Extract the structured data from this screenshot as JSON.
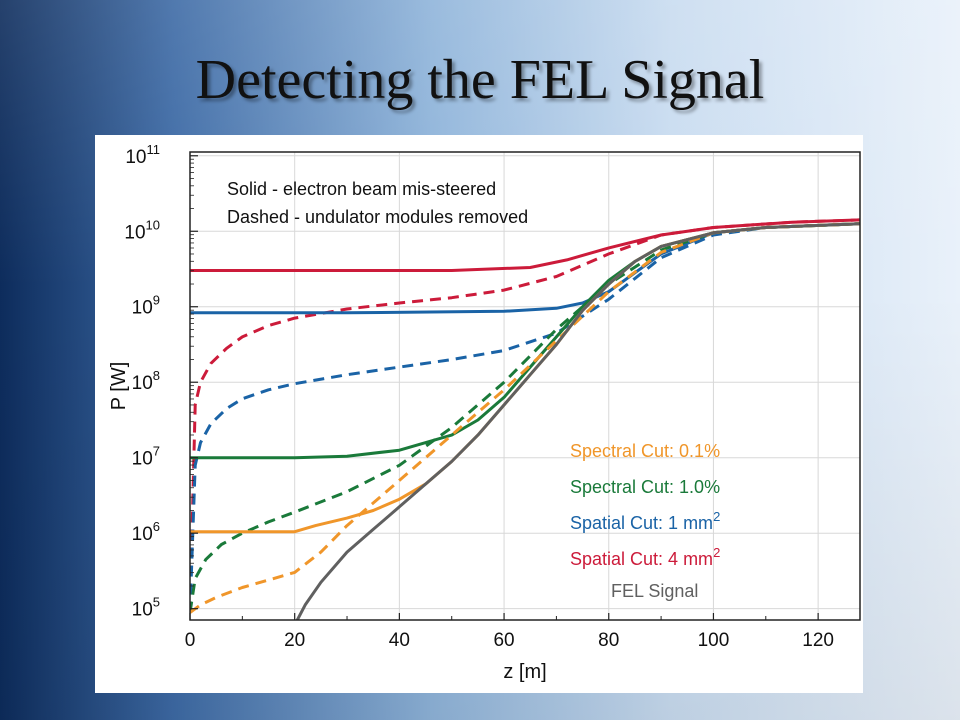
{
  "slide": {
    "title": "Detecting the FEL Signal"
  },
  "colors": {
    "red": "#cc1b3a",
    "blue": "#1a63a6",
    "green": "#1a7a3a",
    "orange": "#f0962a",
    "gray": "#606060"
  },
  "chart_data": {
    "type": "line",
    "xlabel": "z [m]",
    "ylabel": "P [W]",
    "xlim": [
      0,
      128
    ],
    "ylim_log10": [
      4.85,
      11.05
    ],
    "y_scale": "log",
    "grid": true,
    "x_ticks": [
      "0",
      "20",
      "40",
      "60",
      "80",
      "100",
      "120"
    ],
    "y_ticks": [
      {
        "base": "10",
        "exp": "5"
      },
      {
        "base": "10",
        "exp": "6"
      },
      {
        "base": "10",
        "exp": "7"
      },
      {
        "base": "10",
        "exp": "8"
      },
      {
        "base": "10",
        "exp": "9"
      },
      {
        "base": "10",
        "exp": "10"
      },
      {
        "base": "10",
        "exp": "11"
      }
    ],
    "annotations": [
      "Solid - electron beam mis-steered",
      "Dashed - undulator modules removed"
    ],
    "legend": [
      {
        "text": "Spectral Cut: 0.1%",
        "color": "#f0962a"
      },
      {
        "text": "Spectral Cut: 1.0%",
        "color": "#1a7a3a"
      },
      {
        "text": "Spatial Cut: 1 mm",
        "sup": "2",
        "color": "#1a63a6"
      },
      {
        "text": "Spatial Cut: 4 mm",
        "sup": "2",
        "color": "#cc1b3a"
      },
      {
        "text": "FEL Signal",
        "color": "#606060"
      }
    ],
    "series": [
      {
        "color": "#cc1b3a",
        "style": "solid",
        "x": [
          0,
          20,
          50,
          65,
          72,
          80,
          90,
          100,
          115,
          128
        ],
        "y": [
          9.48,
          9.48,
          9.48,
          9.52,
          9.62,
          9.78,
          9.95,
          10.05,
          10.12,
          10.15
        ]
      },
      {
        "color": "#cc1b3a",
        "style": "dashed",
        "x": [
          0,
          1,
          2,
          4,
          7,
          10,
          15,
          20,
          30,
          40,
          50,
          60,
          70,
          80,
          90,
          100,
          115,
          128
        ],
        "y": [
          4.95,
          7.7,
          8.0,
          8.25,
          8.45,
          8.6,
          8.75,
          8.85,
          8.97,
          9.05,
          9.12,
          9.22,
          9.4,
          9.7,
          9.95,
          10.05,
          10.12,
          10.15
        ]
      },
      {
        "color": "#1a63a6",
        "style": "solid",
        "x": [
          0,
          30,
          60,
          70,
          75,
          80,
          85,
          90,
          100,
          110,
          128
        ],
        "y": [
          8.92,
          8.92,
          8.94,
          8.98,
          9.05,
          9.2,
          9.45,
          9.7,
          9.98,
          10.05,
          10.1
        ]
      },
      {
        "color": "#1a63a6",
        "style": "dashed",
        "x": [
          0,
          1,
          2,
          4,
          7,
          10,
          15,
          20,
          30,
          40,
          50,
          60,
          70,
          80,
          90,
          100,
          110,
          128
        ],
        "y": [
          4.95,
          6.9,
          7.2,
          7.45,
          7.65,
          7.78,
          7.9,
          7.98,
          8.1,
          8.2,
          8.3,
          8.42,
          8.65,
          9.1,
          9.65,
          9.95,
          10.05,
          10.1
        ]
      },
      {
        "color": "#1a7a3a",
        "style": "solid",
        "x": [
          0,
          20,
          30,
          40,
          50,
          55,
          60,
          65,
          70,
          75,
          80,
          85,
          90,
          100,
          110,
          128
        ],
        "y": [
          7.0,
          7.0,
          7.02,
          7.1,
          7.3,
          7.5,
          7.8,
          8.2,
          8.6,
          9.0,
          9.35,
          9.6,
          9.8,
          9.98,
          10.05,
          10.1
        ]
      },
      {
        "color": "#1a7a3a",
        "style": "dashed",
        "x": [
          0,
          1,
          3,
          6,
          10,
          15,
          20,
          30,
          40,
          50,
          60,
          70,
          80,
          90,
          100,
          110,
          128
        ],
        "y": [
          4.95,
          5.4,
          5.65,
          5.85,
          6.0,
          6.15,
          6.28,
          6.55,
          6.9,
          7.4,
          8.0,
          8.7,
          9.3,
          9.75,
          9.98,
          10.05,
          10.1
        ]
      },
      {
        "color": "#f0962a",
        "style": "solid",
        "x": [
          0,
          20,
          24,
          30,
          35,
          40,
          45,
          50,
          55,
          60,
          65,
          70,
          75,
          80,
          85,
          90,
          100,
          110,
          128
        ],
        "y": [
          6.02,
          6.02,
          6.1,
          6.2,
          6.3,
          6.45,
          6.65,
          6.95,
          7.3,
          7.7,
          8.1,
          8.5,
          8.95,
          9.3,
          9.6,
          9.8,
          9.98,
          10.05,
          10.1
        ]
      },
      {
        "color": "#f0962a",
        "style": "dashed",
        "x": [
          0,
          2,
          5,
          10,
          15,
          20,
          25,
          30,
          40,
          50,
          60,
          70,
          80,
          90,
          100,
          110,
          128
        ],
        "y": [
          4.95,
          5.05,
          5.15,
          5.28,
          5.38,
          5.48,
          5.75,
          6.1,
          6.7,
          7.3,
          7.9,
          8.55,
          9.2,
          9.72,
          9.98,
          10.05,
          10.1
        ]
      },
      {
        "color": "#606060",
        "style": "solid",
        "x": [
          20.5,
          22,
          25,
          30,
          35,
          40,
          45,
          50,
          55,
          60,
          65,
          70,
          75,
          80,
          85,
          90,
          100,
          110,
          128
        ],
        "y": [
          4.85,
          5.05,
          5.35,
          5.75,
          6.05,
          6.35,
          6.65,
          6.95,
          7.3,
          7.7,
          8.1,
          8.5,
          8.95,
          9.3,
          9.6,
          9.8,
          9.98,
          10.05,
          10.1
        ]
      }
    ]
  }
}
